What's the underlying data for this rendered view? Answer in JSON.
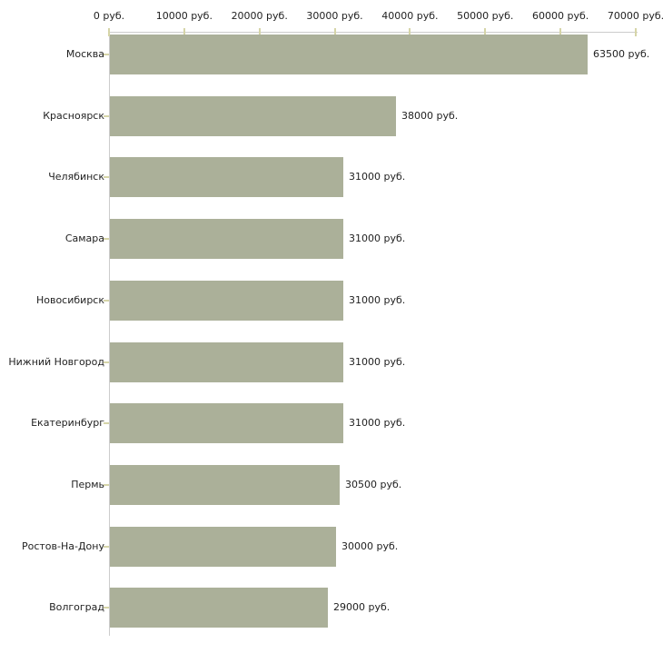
{
  "chart_data": {
    "type": "bar",
    "orientation": "horizontal",
    "title": "",
    "xlabel": "",
    "ylabel": "",
    "unit": "руб.",
    "categories": [
      "Москва",
      "Красноярск",
      "Челябинск",
      "Самара",
      "Новосибирск",
      "Нижний Новгород",
      "Екатеринбург",
      "Пермь",
      "Ростов-На-Дону",
      "Волгоград"
    ],
    "values": [
      63500,
      38000,
      31000,
      31000,
      31000,
      31000,
      31000,
      30500,
      30000,
      29000
    ],
    "value_labels": [
      "63500 руб.",
      "38000 руб.",
      "31000 руб.",
      "31000 руб.",
      "31000 руб.",
      "31000 руб.",
      "31000 руб.",
      "30500 руб.",
      "30000 руб.",
      "29000 руб."
    ],
    "x_axis": {
      "min": 0,
      "max": 70000,
      "tick_step": 10000,
      "position": "top",
      "tick_labels": [
        "0 руб.",
        "10000 руб.",
        "20000 руб.",
        "30000 руб.",
        "40000 руб.",
        "50000 руб.",
        "60000 руб.",
        "70000 руб."
      ]
    },
    "grid": false,
    "legend": false,
    "colors": {
      "bar": "#abb099",
      "axis": "#cccccc",
      "tick": "#d6d5a8",
      "text": "#222222",
      "background": "#ffffff"
    }
  }
}
